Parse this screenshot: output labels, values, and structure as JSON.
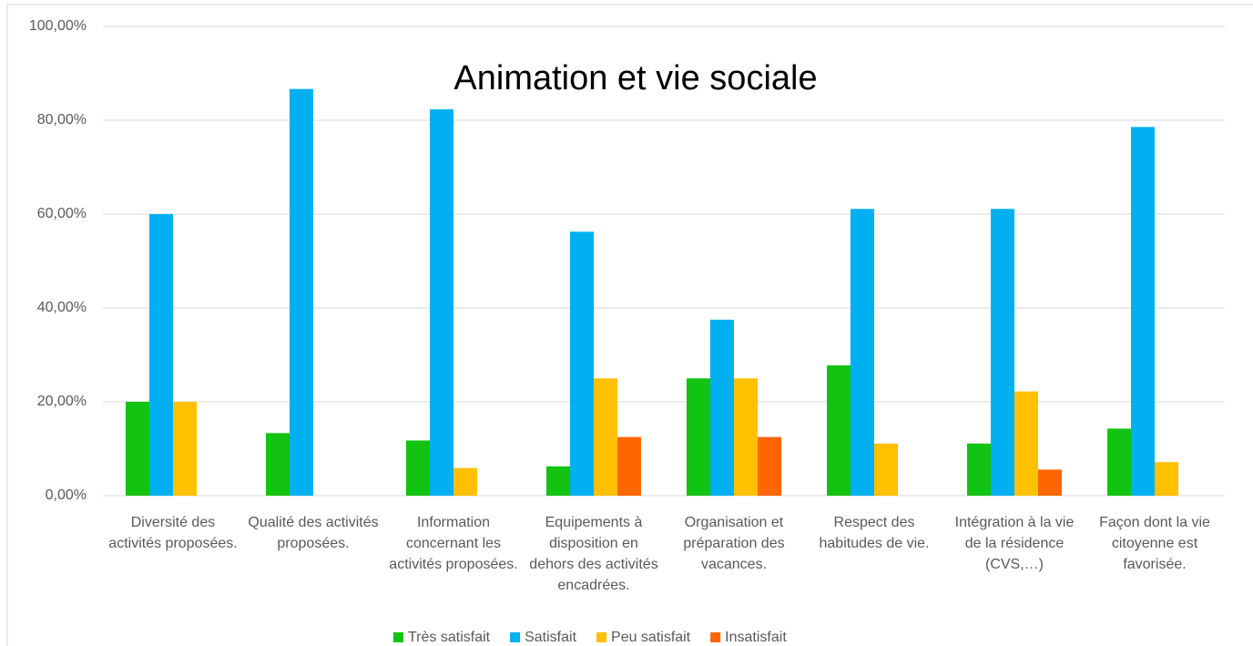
{
  "chart_data": {
    "type": "bar",
    "title": "Animation et vie sociale",
    "categories": [
      "Diversité des activités proposées.",
      "Qualité des activités proposées.",
      "Information concernant les activités proposées.",
      "Equipements à disposition en dehors des activités encadrées.",
      "Organisation et préparation des vacances.",
      "Respect des habitudes de vie.",
      "Intégration à la vie de la résidence (CVS,…)",
      "Façon dont la vie citoyenne est favorisée."
    ],
    "series": [
      {
        "name": "Très satisfait",
        "color": "#12c312",
        "values": [
          20,
          13.33,
          11.76,
          6.25,
          25,
          27.78,
          11.11,
          14.29
        ]
      },
      {
        "name": "Satisfait",
        "color": "#00b0f0",
        "values": [
          60,
          86.67,
          82.35,
          56.25,
          37.5,
          61.11,
          61.11,
          78.57
        ]
      },
      {
        "name": "Peu satisfait",
        "color": "#ffc000",
        "values": [
          20,
          0,
          5.88,
          25,
          25,
          11.11,
          22.22,
          7.14
        ]
      },
      {
        "name": "Insatisfait",
        "color": "#ff6600",
        "values": [
          0,
          0,
          0,
          12.5,
          12.5,
          0,
          5.56,
          0
        ]
      }
    ],
    "ylim": [
      0,
      100
    ],
    "yticks": [
      {
        "value": 0,
        "label": "0,00%"
      },
      {
        "value": 20,
        "label": "20,00%"
      },
      {
        "value": 40,
        "label": "40,00%"
      },
      {
        "value": 60,
        "label": "60,00%"
      },
      {
        "value": 80,
        "label": "80,00%"
      },
      {
        "value": 100,
        "label": "100,00%"
      }
    ],
    "grid": true,
    "legend": "bottom"
  }
}
